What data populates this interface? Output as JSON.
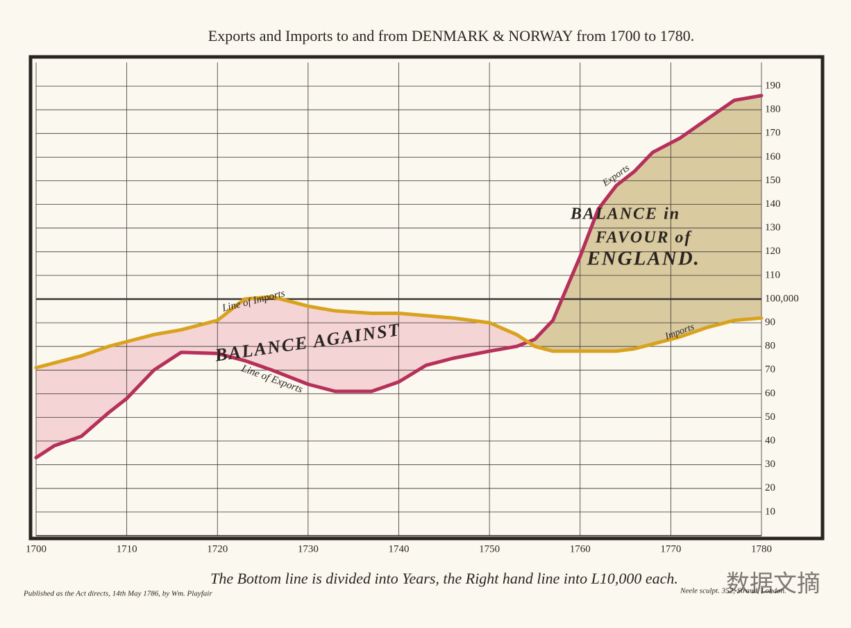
{
  "chart_data": {
    "type": "line",
    "title": "Exports and Imports to and from DENMARK & NORWAY from 1700 to 1780.",
    "x": [
      1700,
      1702,
      1705,
      1708,
      1710,
      1713,
      1716,
      1720,
      1723,
      1726,
      1730,
      1733,
      1737,
      1740,
      1743,
      1746,
      1750,
      1753,
      1755,
      1757,
      1760,
      1762,
      1764,
      1766,
      1768,
      1771,
      1774,
      1777,
      1780
    ],
    "series": [
      {
        "name": "Exports",
        "color": "#b5305a",
        "values": [
          33,
          38,
          42,
          52,
          58,
          70,
          77.5,
          77,
          74,
          70,
          64,
          61,
          61,
          65,
          72,
          75,
          78,
          80,
          83,
          91,
          118,
          138,
          148,
          154,
          162,
          168,
          176,
          184,
          186
        ]
      },
      {
        "name": "Imports",
        "color": "#d9a21e",
        "values": [
          71,
          73,
          76,
          80,
          82,
          85,
          87,
          91,
          100,
          101,
          97,
          95,
          94,
          94,
          93,
          92,
          90,
          85,
          80,
          78,
          78,
          78,
          78,
          79,
          81,
          84,
          88,
          91,
          92
        ]
      }
    ],
    "area_colors": {
      "against": "#f4d4d4",
      "favour": "#d9caa0"
    },
    "xlim": [
      1700,
      1780
    ],
    "xticks": [
      1700,
      1710,
      1720,
      1730,
      1740,
      1750,
      1760,
      1770,
      1780
    ],
    "ylim": [
      0,
      200
    ],
    "yticks": [
      10,
      20,
      30,
      40,
      50,
      60,
      70,
      80,
      90,
      {
        "value": 100,
        "label": "100,000"
      },
      110,
      120,
      130,
      140,
      150,
      160,
      170,
      180,
      190
    ],
    "grid": true,
    "annotations": [
      "Line of Imports",
      "Line of Exports",
      "BALANCE AGAINST",
      "BALANCE in",
      "FAVOUR of",
      "ENGLAND.",
      "Exports",
      "Imports"
    ],
    "note": "The Bottom line is divided into Years, the Right hand line into L10,000 each.",
    "publisher": "Published as the Act directs, 14th May 1786, by Wm. Playfair",
    "engraver": "Neele sculpt. 352, Strand, London.",
    "watermark": "数据文摘"
  }
}
